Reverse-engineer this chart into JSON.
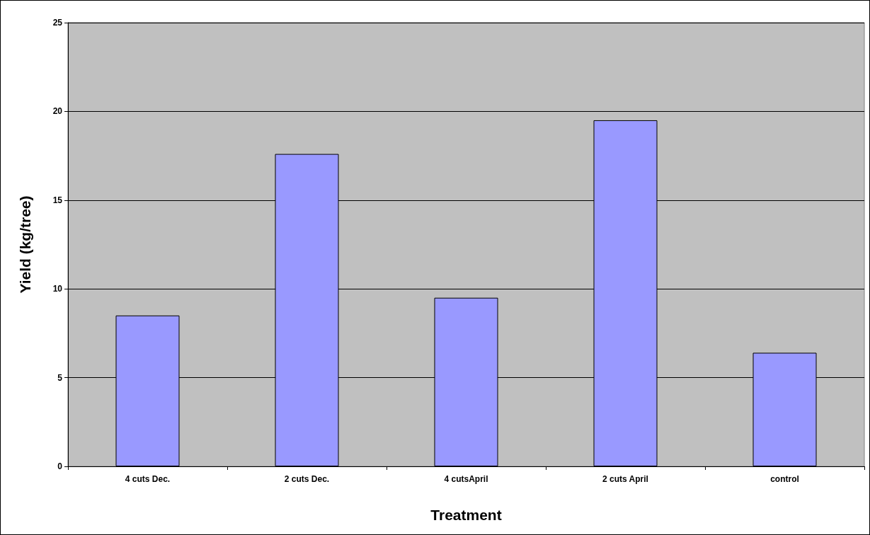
{
  "chart_data": {
    "type": "bar",
    "xlabel": "Treatment",
    "ylabel": "Yield (kg/tree)",
    "categories": [
      "4 cuts Dec.",
      "2 cuts Dec.",
      "4 cutsApril",
      "2 cuts April",
      "control"
    ],
    "values": [
      8.5,
      17.6,
      9.5,
      19.5,
      6.4
    ],
    "color": "#9999ff",
    "ylim": [
      0,
      25
    ],
    "yticks": [
      0,
      5,
      10,
      15,
      20,
      25
    ],
    "grid": "y"
  }
}
